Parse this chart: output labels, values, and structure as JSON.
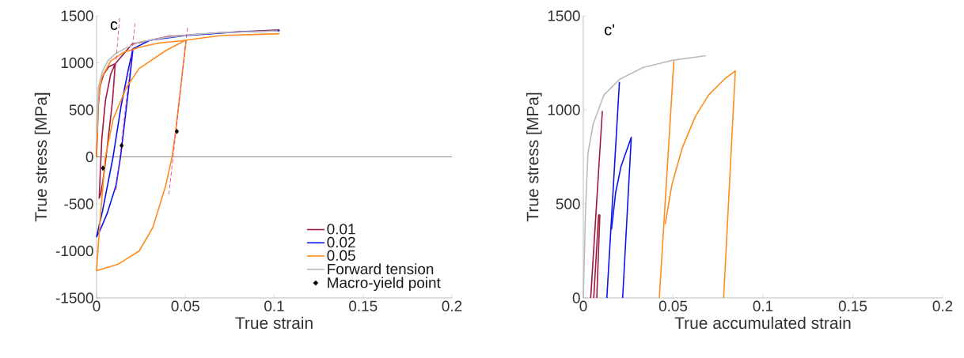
{
  "chart_data": [
    {
      "type": "line",
      "xlabel": "True strain",
      "ylabel": "True stress [MPa]",
      "annotations": [
        "c"
      ],
      "xlim": [
        0,
        0.2
      ],
      "ylim": [
        -1500,
        1500
      ],
      "xticks": [
        0,
        0.05,
        0.1,
        0.15,
        0.2
      ],
      "yticks": [
        -1500,
        -1000,
        -500,
        0,
        500,
        1000,
        1500
      ],
      "grid": false,
      "legend": "bottom right",
      "ref_lines": [
        {
          "axis": "y",
          "value": 0,
          "color": "#404040"
        }
      ],
      "series": [
        {
          "name": "0.01",
          "color": "#a0193c",
          "x": [
            0,
            0.0005,
            0.001,
            0.002,
            0.004,
            0.007,
            0.0105,
            0.009,
            0.006,
            0.004,
            0.0025,
            0.0015,
            0.002,
            0.003,
            0.005,
            0.008,
            0.0105,
            0.02,
            0.04,
            0.07,
            0.103
          ],
          "values": [
            0,
            300,
            550,
            750,
            880,
            960,
            990,
            600,
            100,
            -200,
            -380,
            -440,
            -200,
            200,
            600,
            880,
            990,
            1200,
            1280,
            1320,
            1350
          ]
        },
        {
          "name": "0.02",
          "color": "#0a14f0",
          "x": [
            0.0205,
            0.0185,
            0.016,
            0.0135,
            0.011,
            0.006,
            0.002,
            0,
            0.0033,
            0.0093,
            0.0138,
            0.018,
            0.0205,
            0.03,
            0.05,
            0.08,
            0.103
          ],
          "values": [
            1150,
            800,
            400,
            0,
            -300,
            -600,
            -780,
            -850,
            -580,
            0,
            540,
            940,
            1150,
            1240,
            1290,
            1330,
            1340
          ]
        },
        {
          "name": "0.05",
          "color": "#ff8c1a",
          "x": [
            0,
            0.001,
            0.003,
            0.008,
            0.015,
            0.025,
            0.035,
            0.0504,
            0.0465,
            0.0445,
            0.0425,
            0.039,
            0.0317,
            0.024,
            0.0123,
            0,
            0.0018,
            0.0048,
            0.0093,
            0.0168,
            0.024,
            0.039,
            0.05,
            0.07,
            0.103
          ],
          "values": [
            0,
            600,
            850,
            1020,
            1110,
            1170,
            1210,
            1240,
            600,
            270,
            0,
            -300,
            -750,
            -1000,
            -1140,
            -1210,
            -720,
            -20,
            400,
            740,
            940,
            1130,
            1240,
            1290,
            1310
          ]
        },
        {
          "name": "Forward tension",
          "color": "#bbbbbb",
          "x": [
            0,
            0.001,
            0.0033,
            0.0063,
            0.0108,
            0.0168,
            0.024,
            0.039,
            0.054,
            0.069,
            0.084,
            0.102
          ],
          "values": [
            250,
            740,
            910,
            1020,
            1100,
            1160,
            1220,
            1270,
            1300,
            1320,
            1330,
            1340
          ]
        },
        {
          "name": "Macro-yield point",
          "type": "scatter",
          "marker": "diamond",
          "color": "#000000",
          "x": [
            0.0036,
            0.0141,
            0.0452
          ],
          "values": [
            -120,
            120,
            270
          ]
        },
        {
          "type": "line",
          "line_style": "dashed",
          "color": "#e0309a",
          "x": [
            0.0095,
            0.013
          ],
          "values": [
            700,
            1480
          ]
        },
        {
          "type": "line",
          "line_style": "dashed",
          "color": "#e0309a",
          "x": [
            0.011,
            0.0217
          ],
          "values": [
            -350,
            1420
          ]
        },
        {
          "type": "line",
          "line_style": "dashed",
          "color": "#e0309a",
          "x": [
            0.0407,
            0.0512
          ],
          "values": [
            -400,
            1380
          ]
        }
      ]
    },
    {
      "type": "line",
      "xlabel": "True accumulated strain",
      "ylabel": "True stress [MPa]",
      "annotations": [
        "c'"
      ],
      "xlim": [
        0,
        0.2
      ],
      "ylim": [
        0,
        1500
      ],
      "xticks": [
        0,
        0.05,
        0.1,
        0.15,
        0.2
      ],
      "yticks": [
        0,
        500,
        1000,
        1500
      ],
      "grid": false,
      "series": [
        {
          "color": "#bbbbbb",
          "x": [
            0,
            0.0012,
            0.0026,
            0.0055,
            0.0114,
            0.0201,
            0.0332,
            0.0493,
            0.0682
          ],
          "values": [
            0,
            462,
            770,
            924,
            1078,
            1162,
            1225,
            1263,
            1288
          ]
        },
        {
          "color": "#a0193c",
          "x": [
            0.0041,
            0.0106
          ],
          "values": [
            0,
            994
          ]
        },
        {
          "color": "#a0193c",
          "x": [
            0.0058,
            0.0085,
            0.0092,
            0.0075
          ],
          "values": [
            0,
            441,
            441,
            0
          ]
        },
        {
          "color": "#0a14f0",
          "x": [
            0.0131,
            0.0201
          ],
          "values": [
            0,
            1148
          ]
        },
        {
          "color": "#0a14f0",
          "x": [
            0.0157,
            0.018,
            0.021,
            0.0267,
            0.0219
          ],
          "values": [
            364,
            560,
            700,
            854,
            0
          ]
        },
        {
          "color": "#ff8c1a",
          "x": [
            0.0423,
            0.0504
          ],
          "values": [
            0,
            1260
          ]
        },
        {
          "color": "#ff8c1a",
          "x": [
            0.0456,
            0.0493,
            0.0551,
            0.0624,
            0.0697,
            0.0784,
            0.0846,
            0.0781
          ],
          "values": [
            392,
            602,
            798,
            966,
            1078,
            1162,
            1207,
            0
          ]
        }
      ]
    }
  ]
}
